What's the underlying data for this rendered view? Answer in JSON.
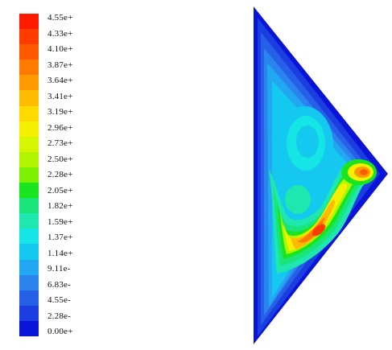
{
  "legend": {
    "labels": [
      "4.55e+",
      "4.33e+",
      "4.10e+",
      "3.87e+",
      "3.64e+",
      "3.41e+",
      "3.19e+",
      "2.96e+",
      "2.73e+",
      "2.50e+",
      "2.28e+",
      "2.05e+",
      "1.82e+",
      "1.59e+",
      "1.37e+",
      "1.14e+",
      "9.11e-",
      "6.83e-",
      "4.55e-",
      "2.28e-",
      "0.00e+"
    ],
    "colors": [
      "#ff1a00",
      "#ff3b00",
      "#ff5a00",
      "#ff7a00",
      "#ff9a00",
      "#ffbb00",
      "#ffda00",
      "#f5ef00",
      "#d6f500",
      "#b2f500",
      "#7cf000",
      "#19e51f",
      "#1ae57a",
      "#1ee8b0",
      "#15e5e5",
      "#14c8f0",
      "#22a8f2",
      "#2b83ee",
      "#2660e8",
      "#1b3ee0",
      "#0a14d8"
    ]
  },
  "contour": {
    "levels": [
      "#0a14d8",
      "#1b3ee0",
      "#2660e8",
      "#2b83ee",
      "#22a8f2",
      "#14c8f0",
      "#15e5e5",
      "#1ee8b0",
      "#1ae57a",
      "#19e51f",
      "#7cf000",
      "#b2f500",
      "#d6f500",
      "#f5ef00",
      "#ffda00",
      "#ffbb00",
      "#ff9a00",
      "#ff7a00",
      "#ff5a00",
      "#ff3b00",
      "#ff1a00"
    ]
  }
}
